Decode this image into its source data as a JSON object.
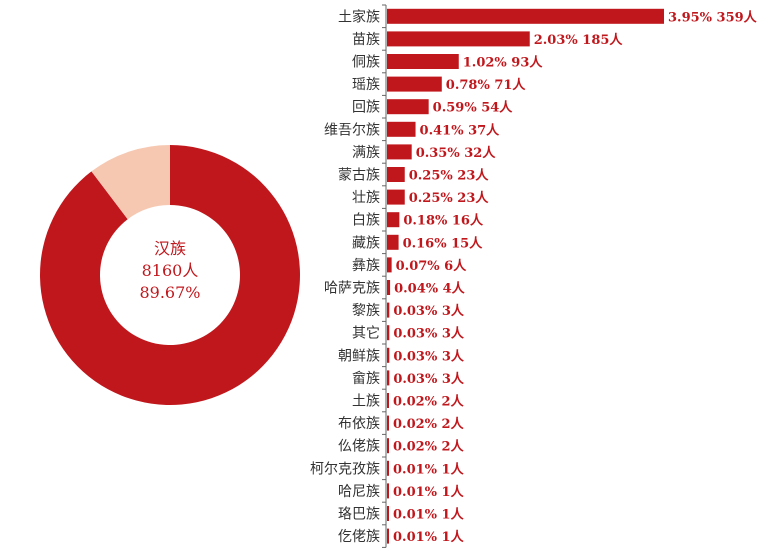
{
  "chart_data": [
    {
      "type": "pie",
      "style": "donut",
      "center_label": {
        "name": "汉族",
        "count_text": "8160人",
        "percent_text": "89.67%"
      },
      "slices": [
        {
          "label": "汉族",
          "value": 89.67,
          "color": "#c0171c"
        },
        {
          "label": "",
          "value": 10.33,
          "color": "#f6c8b2"
        }
      ]
    },
    {
      "type": "bar",
      "orientation": "horizontal",
      "color": "#c0171c",
      "categories": [
        "土家族",
        "苗族",
        "侗族",
        "瑶族",
        "回族",
        "维吾尔族",
        "满族",
        "蒙古族",
        "壮族",
        "白族",
        "藏族",
        "彝族",
        "哈萨克族",
        "黎族",
        "其它",
        "朝鲜族",
        "畲族",
        "土族",
        "布依族",
        "仫佬族",
        "柯尔克孜族",
        "哈尼族",
        "珞巴族",
        "仡佬族"
      ],
      "values": [
        359,
        185,
        93,
        71,
        54,
        37,
        32,
        23,
        23,
        16,
        15,
        6,
        4,
        3,
        3,
        3,
        3,
        2,
        2,
        2,
        1,
        1,
        1,
        1
      ],
      "percents": [
        3.95,
        2.03,
        1.02,
        0.78,
        0.59,
        0.41,
        0.35,
        0.25,
        0.25,
        0.18,
        0.16,
        0.07,
        0.04,
        0.03,
        0.03,
        0.03,
        0.03,
        0.02,
        0.02,
        0.02,
        0.01,
        0.01,
        0.01,
        0.01
      ],
      "value_labels": [
        "3.95%  359人",
        "2.03%  185人",
        "1.02%  93人",
        "0.78%  71人",
        "0.59%  54人",
        "0.41%  37人",
        "0.35%  32人",
        "0.25%  23人",
        "0.25%  23人",
        "0.18%  16人",
        "0.16%  15人",
        "0.07%  6人",
        "0.04%  4人",
        "0.03%  3人",
        "0.03%  3人",
        "0.03%  3人",
        "0.03%  3人",
        "0.02%  2人",
        "0.02%  2人",
        "0.02%  2人",
        "0.01%  1人",
        "0.01%  1人",
        "0.01%  1人",
        "0.01%  1人"
      ],
      "xlim": [
        0,
        359
      ],
      "grid": false
    }
  ]
}
